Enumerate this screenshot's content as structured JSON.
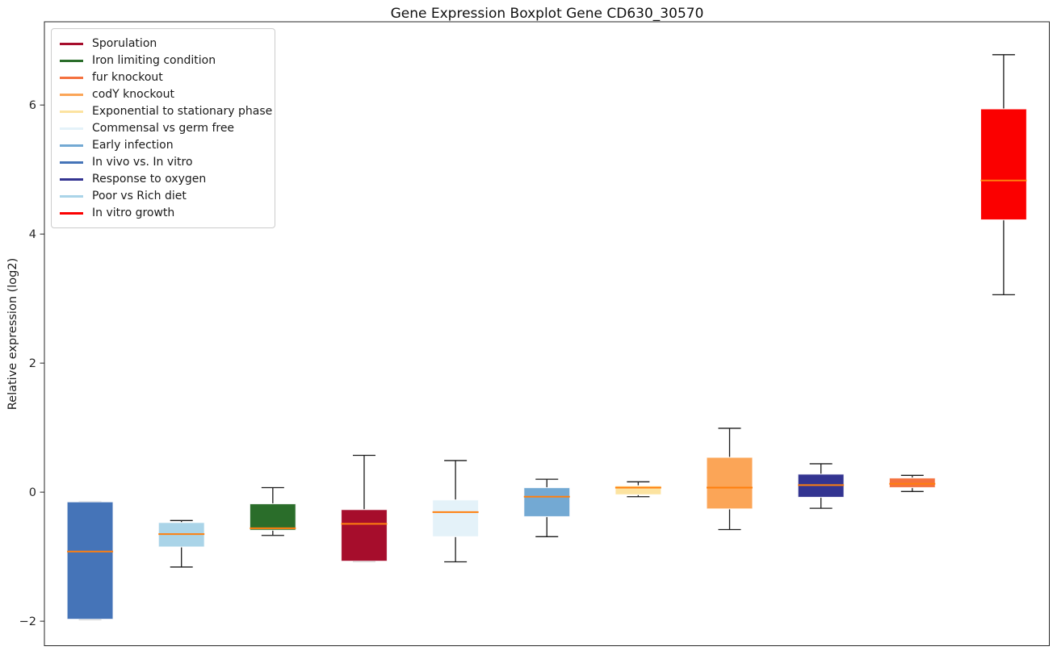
{
  "page": {
    "background": "#ffffff"
  },
  "chart_data": {
    "type": "boxplot",
    "title": "Gene Expression Boxplot Gene CD630_30570",
    "ylabel": "Relative expression (log2)",
    "xlabel": "",
    "x_tick_labels": [],
    "yticks": [
      -2,
      0,
      2,
      4,
      6
    ],
    "ylim": [
      -2.38,
      7.29
    ],
    "grid": false,
    "legend_position": "upper-left",
    "median_color": "#ff7f0e",
    "whisker_color": "#1a1a1a",
    "box_edge_color": "rgba(255,255,255,0.85)",
    "legend_entries": [
      {
        "label": "Sporulation",
        "color": "#a60d2c"
      },
      {
        "label": "Iron limiting condition",
        "color": "#2a6d2a"
      },
      {
        "label": "fur knockout",
        "color": "#f4713e"
      },
      {
        "label": "codY knockout",
        "color": "#fba557"
      },
      {
        "label": "Exponential to stationary phase",
        "color": "#fce3a0"
      },
      {
        "label": "Commensal vs germ free",
        "color": "#e4f2f9"
      },
      {
        "label": "Early infection",
        "color": "#73a9d3"
      },
      {
        "label": "In vivo vs. In vitro",
        "color": "#4574b8"
      },
      {
        "label": "Response to oxygen",
        "color": "#333491"
      },
      {
        "label": "Poor vs Rich diet",
        "color": "#aad4e8"
      },
      {
        "label": "In vitro growth",
        "color": "#fb0000"
      }
    ],
    "series": [
      {
        "label": "In vivo vs. In vitro",
        "color": "#4574b8",
        "whisker_low": -1.97,
        "q1": -1.97,
        "median": -0.92,
        "q3": -0.15,
        "whisker_high": -0.15
      },
      {
        "label": "Poor vs Rich diet",
        "color": "#aad4e8",
        "whisker_low": -1.16,
        "q1": -0.85,
        "median": -0.65,
        "q3": -0.47,
        "whisker_high": -0.44
      },
      {
        "label": "Iron limiting condition",
        "color": "#2a6d2a",
        "whisker_low": -0.67,
        "q1": -0.59,
        "median": -0.56,
        "q3": -0.18,
        "whisker_high": 0.07
      },
      {
        "label": "Sporulation",
        "color": "#a60d2c",
        "whisker_low": -1.07,
        "q1": -1.07,
        "median": -0.49,
        "q3": -0.27,
        "whisker_high": 0.57
      },
      {
        "label": "Commensal vs germ free",
        "color": "#e4f2f9",
        "whisker_low": -1.08,
        "q1": -0.69,
        "median": -0.31,
        "q3": -0.12,
        "whisker_high": 0.49
      },
      {
        "label": "Early infection",
        "color": "#73a9d3",
        "whisker_low": -0.69,
        "q1": -0.38,
        "median": -0.07,
        "q3": 0.07,
        "whisker_high": 0.2
      },
      {
        "label": "Exponential to stationary phase",
        "color": "#fce3a0",
        "whisker_low": -0.07,
        "q1": -0.04,
        "median": 0.07,
        "q3": 0.1,
        "whisker_high": 0.16
      },
      {
        "label": "codY knockout",
        "color": "#fba557",
        "whisker_low": -0.58,
        "q1": -0.26,
        "median": 0.07,
        "q3": 0.54,
        "whisker_high": 0.99
      },
      {
        "label": "Response to oxygen",
        "color": "#333491",
        "whisker_low": -0.25,
        "q1": -0.08,
        "median": 0.11,
        "q3": 0.28,
        "whisker_high": 0.44
      },
      {
        "label": "fur knockout",
        "color": "#f4713e",
        "whisker_low": 0.01,
        "q1": 0.07,
        "median": 0.13,
        "q3": 0.22,
        "whisker_high": 0.26
      },
      {
        "label": "In vitro growth",
        "color": "#fb0000",
        "whisker_low": 3.06,
        "q1": 4.22,
        "median": 4.83,
        "q3": 5.94,
        "whisker_high": 6.78
      }
    ]
  }
}
